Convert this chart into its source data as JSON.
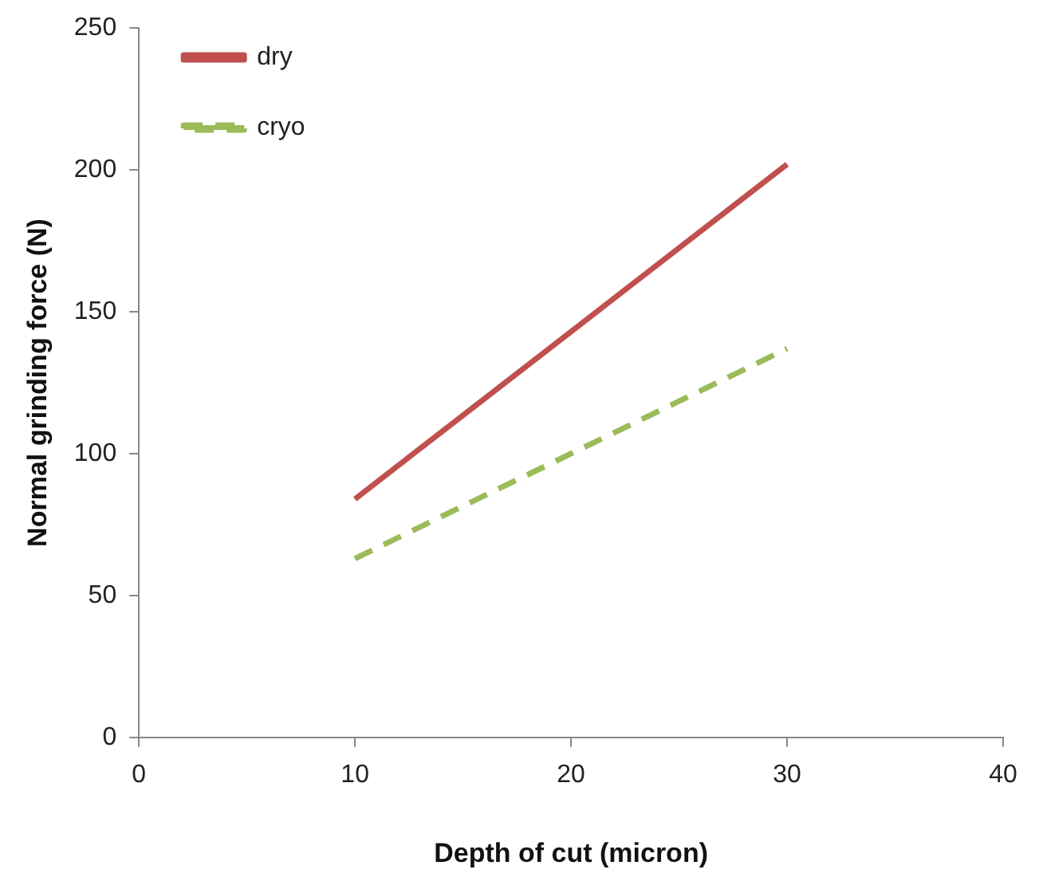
{
  "chart_data": {
    "type": "line",
    "xlabel": "Depth of cut (micron)",
    "ylabel": "Normal grinding force (N)",
    "x": [
      10,
      20,
      30
    ],
    "series": [
      {
        "name": "dry",
        "color": "#c0504d",
        "values": [
          84,
          143,
          202
        ],
        "line_style": "solid"
      },
      {
        "name": "cryo",
        "color": "#9bbb59",
        "values": [
          63,
          100,
          137
        ],
        "line_style": "dashed"
      }
    ],
    "xlim": [
      0,
      40
    ],
    "xticks": [
      0,
      10,
      20,
      30,
      40
    ],
    "ylim": [
      0,
      250
    ],
    "yticks": [
      0,
      50,
      100,
      150,
      200,
      250
    ],
    "grid": false,
    "legend": "top left",
    "marker": "none"
  }
}
